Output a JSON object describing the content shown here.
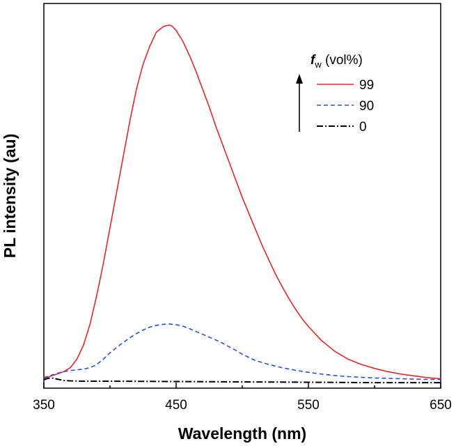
{
  "chart_data": {
    "type": "line",
    "title": "",
    "xlabel": "Wavelength (nm)",
    "ylabel": "PL intensity (au)",
    "xlim": [
      350,
      650
    ],
    "ylim": [
      0,
      1.0
    ],
    "xticks": [
      {
        "value": 350,
        "label": "350"
      },
      {
        "value": 450,
        "label": "450"
      },
      {
        "value": 550,
        "label": "550"
      },
      {
        "value": 650,
        "label": "650"
      }
    ],
    "grid": false,
    "legend": {
      "title_symbol": "f",
      "title_subscript": "w",
      "title_rest": " (vol%)",
      "placement": "top-right",
      "arrow": "increasing fw"
    },
    "series": [
      {
        "name": "99",
        "color": "#e0282d",
        "style": "solid",
        "x": [
          350,
          355,
          360,
          365,
          370,
          375,
          380,
          385,
          390,
          395,
          400,
          405,
          410,
          415,
          420,
          425,
          430,
          435,
          440,
          442,
          445,
          447,
          450,
          455,
          460,
          465,
          470,
          475,
          480,
          485,
          490,
          495,
          500,
          505,
          510,
          515,
          520,
          525,
          530,
          535,
          540,
          545,
          550,
          560,
          570,
          580,
          590,
          600,
          610,
          620,
          630,
          640,
          650
        ],
        "y": [
          0.006,
          0.012,
          0.018,
          0.025,
          0.036,
          0.06,
          0.1,
          0.16,
          0.24,
          0.33,
          0.43,
          0.53,
          0.63,
          0.73,
          0.82,
          0.89,
          0.94,
          0.98,
          0.995,
          0.998,
          1.0,
          0.997,
          0.985,
          0.955,
          0.915,
          0.87,
          0.82,
          0.77,
          0.715,
          0.665,
          0.615,
          0.565,
          0.515,
          0.47,
          0.425,
          0.38,
          0.34,
          0.3,
          0.265,
          0.232,
          0.202,
          0.175,
          0.152,
          0.112,
          0.082,
          0.06,
          0.045,
          0.034,
          0.025,
          0.018,
          0.013,
          0.008,
          0.005
        ]
      },
      {
        "name": "90",
        "color": "#2a4fd6",
        "style": "dashed",
        "x": [
          350,
          355,
          360,
          365,
          370,
          375,
          380,
          385,
          390,
          395,
          400,
          405,
          410,
          415,
          420,
          425,
          430,
          435,
          440,
          445,
          450,
          455,
          460,
          465,
          470,
          475,
          480,
          485,
          490,
          495,
          500,
          505,
          510,
          520,
          530,
          540,
          550,
          560,
          570,
          580,
          590,
          600,
          610,
          620,
          630,
          640,
          650
        ],
        "y": [
          0.008,
          0.014,
          0.02,
          0.025,
          0.028,
          0.03,
          0.032,
          0.036,
          0.045,
          0.06,
          0.078,
          0.093,
          0.107,
          0.12,
          0.132,
          0.142,
          0.15,
          0.155,
          0.158,
          0.159,
          0.157,
          0.153,
          0.146,
          0.138,
          0.13,
          0.122,
          0.114,
          0.105,
          0.095,
          0.085,
          0.074,
          0.065,
          0.056,
          0.045,
          0.036,
          0.029,
          0.023,
          0.018,
          0.014,
          0.011,
          0.009,
          0.007,
          0.006,
          0.005,
          0.004,
          0.003,
          0.003
        ]
      },
      {
        "name": "0",
        "color": "#000000",
        "style": "dashdot",
        "x": [
          350,
          353,
          356,
          360,
          365,
          370,
          380,
          400,
          450,
          500,
          550,
          600,
          650
        ],
        "y": [
          0.002,
          0.006,
          0.007,
          0.004,
          0.0,
          -0.001,
          -0.002,
          -0.002,
          -0.003,
          -0.004,
          -0.005,
          -0.006,
          -0.006
        ]
      }
    ]
  }
}
